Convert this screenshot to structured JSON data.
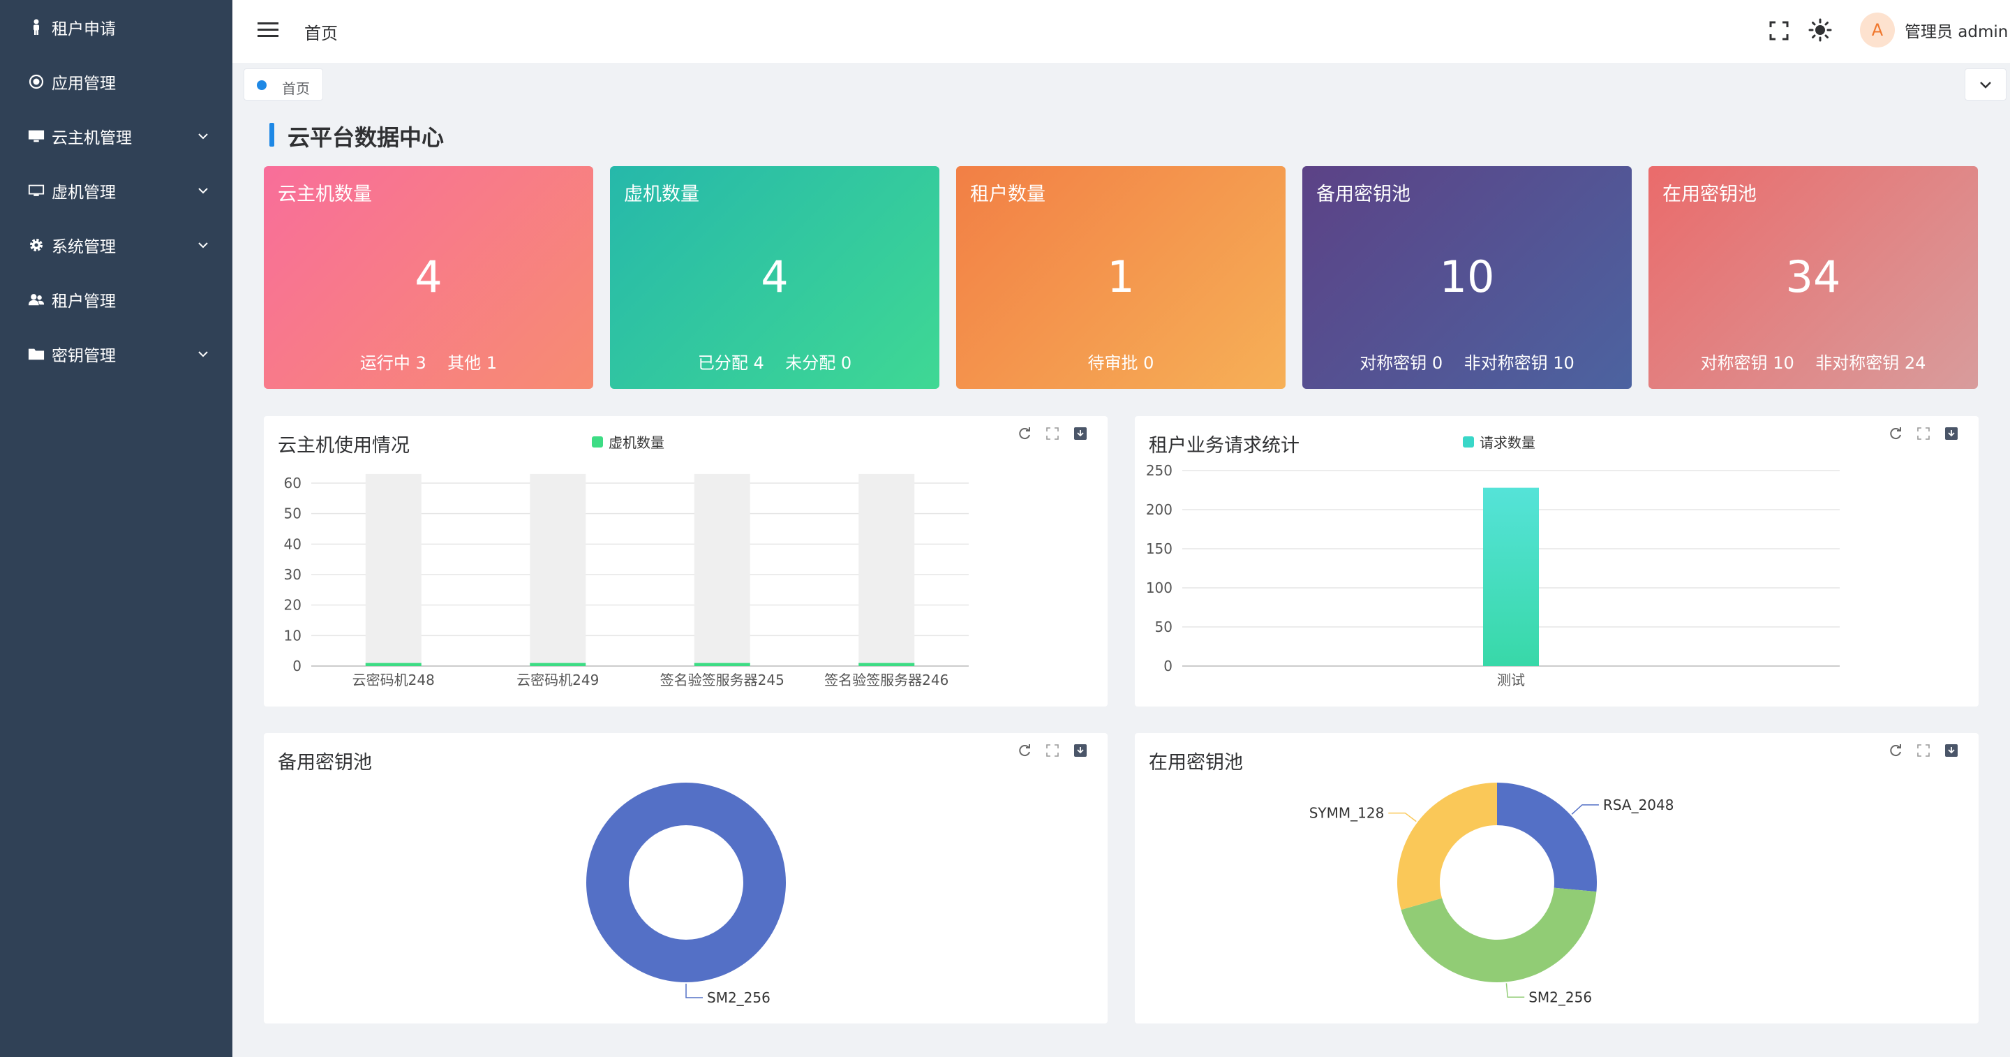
{
  "sidebar": {
    "items": [
      {
        "label": "租户申请",
        "icon": "person-icon",
        "has_submenu": false
      },
      {
        "label": "应用管理",
        "icon": "target-icon",
        "has_submenu": false
      },
      {
        "label": "云主机管理",
        "icon": "monitor-icon",
        "has_submenu": true
      },
      {
        "label": "虚机管理",
        "icon": "screen-icon",
        "has_submenu": true
      },
      {
        "label": "系统管理",
        "icon": "gear-icon",
        "has_submenu": true
      },
      {
        "label": "租户管理",
        "icon": "users-icon",
        "has_submenu": false
      },
      {
        "label": "密钥管理",
        "icon": "folder-icon",
        "has_submenu": true
      }
    ]
  },
  "header": {
    "breadcrumb": "首页",
    "user_avatar": "A",
    "user_name": "管理员 admin"
  },
  "tags": {
    "home": "首页"
  },
  "dashboard": {
    "title": "云平台数据中心"
  },
  "cards": [
    {
      "title": "云主机数量",
      "value": "4",
      "sub": "运行中 3    其他 1",
      "colors": [
        "#f86e9a",
        "#f78c72"
      ]
    },
    {
      "title": "虚机数量",
      "value": "4",
      "sub": "已分配 4    未分配 0",
      "colors": [
        "#26b8aa",
        "#3fd894"
      ]
    },
    {
      "title": "租户数量",
      "value": "1",
      "sub": "待审批 0",
      "colors": [
        "#f27f45",
        "#f6b057"
      ]
    },
    {
      "title": "备用密钥池",
      "value": "10",
      "sub": "对称密钥 0    非对称密钥 10",
      "colors": [
        "#5c4286",
        "#4c63a0"
      ]
    },
    {
      "title": "在用密钥池",
      "value": "34",
      "sub": "对称密钥 10    非对称密钥 24",
      "colors": [
        "#ea6b6b",
        "#d89c9c"
      ]
    }
  ],
  "charts": {
    "cloud_usage": {
      "title": "云主机使用情况",
      "legend": "虚机数量",
      "legend_color": "#3ddc84"
    },
    "tenant_requests": {
      "title": "租户业务请求统计",
      "legend": "请求数量",
      "legend_color": "#39d7c8"
    },
    "standby_pool": {
      "title": "备用密钥池"
    },
    "inuse_pool": {
      "title": "在用密钥池"
    }
  },
  "chart_data": [
    {
      "type": "bar",
      "title": "云主机使用情况",
      "categories": [
        "云密码机248",
        "云密码机249",
        "签名验签服务器245",
        "签名验签服务器246"
      ],
      "series": [
        {
          "name": "虚机数量",
          "values": [
            1,
            1,
            1,
            1
          ]
        }
      ],
      "background_max": 63,
      "ylim": [
        0,
        60
      ],
      "yticks": [
        0,
        10,
        20,
        30,
        40,
        50,
        60
      ],
      "grid": true,
      "legend": "top"
    },
    {
      "type": "bar",
      "title": "租户业务请求统计",
      "categories": [
        "测试"
      ],
      "series": [
        {
          "name": "请求数量",
          "values": [
            228
          ]
        }
      ],
      "ylim": [
        0,
        250
      ],
      "yticks": [
        0,
        50,
        100,
        150,
        200,
        250
      ],
      "grid": true,
      "legend": "top"
    },
    {
      "type": "pie",
      "title": "备用密钥池",
      "slices": [
        {
          "label": "SM2_256",
          "value": 10,
          "color": "#5470c6"
        }
      ]
    },
    {
      "type": "pie",
      "title": "在用密钥池",
      "slices": [
        {
          "label": "RSA_2048",
          "value": 9,
          "color": "#5470c6"
        },
        {
          "label": "SM2_256",
          "value": 15,
          "color": "#91cc75"
        },
        {
          "label": "SYMM_128",
          "value": 10,
          "color": "#fac858"
        }
      ]
    }
  ]
}
